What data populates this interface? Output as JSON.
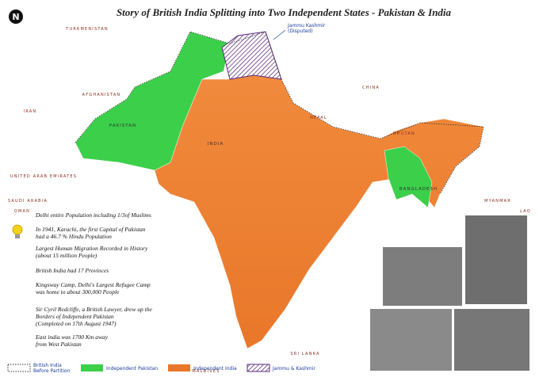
{
  "title": "Story of British India Splitting into Two Independent States - Pakistan & India",
  "countries": [
    "TURKMENISTAN",
    "AFGHANISTAN",
    "IRAN",
    "PAKISTAN",
    "INDIA",
    "NEPAL",
    "CHINA",
    "BHUTAN",
    "BANGLADESH",
    "UNITED ARAB EMIRATES",
    "SAUDI ARABIA",
    "OMAN",
    "MYANMAR",
    "LAO",
    "SRI LANKA",
    "MALDIVES"
  ],
  "callout": [
    "Jammu Kashmir",
    "(Disputed)"
  ],
  "facts": [
    [
      "Delhi entire Population including 1/3of Muslims"
    ],
    [
      "In 1941, Karachi, the first Capital of Pakistan",
      "had a 46.7 % Hindu Population"
    ],
    [
      "Largest Human Migration Recorded in History",
      "(about 15 million People)"
    ],
    [
      "British India had 17 Provinces"
    ],
    [
      "Kingsway Camp, Delhi's Largest Refugee Camp",
      "was home to about 300,000 People"
    ],
    [
      "Sir Cyril Redcliffe, a British Lawyer, drew up the",
      "Borders of Independent Pakistan",
      "(Completed on 17th August 1947)"
    ],
    [
      "East india was 1700 Km away",
      "from West Pakistan"
    ]
  ],
  "legend": [
    [
      "British India",
      "Before Partition"
    ],
    [
      "Independent Pakistan"
    ],
    [
      "Independent India"
    ],
    [
      "Jammu & Kashmir"
    ]
  ]
}
